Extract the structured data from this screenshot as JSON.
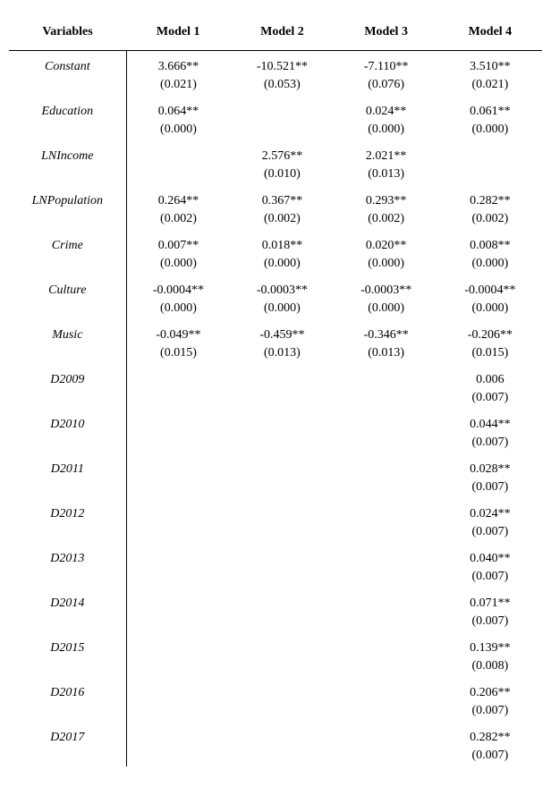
{
  "table": {
    "columns": [
      "Variables",
      "Model 1",
      "Model 2",
      "Model 3",
      "Model 4"
    ],
    "rows": [
      {
        "var": "Constant",
        "m1_c": "3.666**",
        "m1_s": "(0.021)",
        "m2_c": "-10.521**",
        "m2_s": "(0.053)",
        "m3_c": "-7.110**",
        "m3_s": "(0.076)",
        "m4_c": "3.510**",
        "m4_s": "(0.021)"
      },
      {
        "var": "Education",
        "m1_c": "0.064**",
        "m1_s": "(0.000)",
        "m2_c": "",
        "m2_s": "",
        "m3_c": "0.024**",
        "m3_s": "(0.000)",
        "m4_c": "0.061**",
        "m4_s": "(0.000)"
      },
      {
        "var": "LNIncome",
        "m1_c": "",
        "m1_s": "",
        "m2_c": "2.576**",
        "m2_s": "(0.010)",
        "m3_c": "2.021**",
        "m3_s": "(0.013)",
        "m4_c": "",
        "m4_s": ""
      },
      {
        "var": "LNPopulation",
        "m1_c": "0.264**",
        "m1_s": "(0.002)",
        "m2_c": "0.367**",
        "m2_s": "(0.002)",
        "m3_c": "0.293**",
        "m3_s": "(0.002)",
        "m4_c": "0.282**",
        "m4_s": "(0.002)"
      },
      {
        "var": "Crime",
        "m1_c": "0.007**",
        "m1_s": "(0.000)",
        "m2_c": "0.018**",
        "m2_s": "(0.000)",
        "m3_c": "0.020**",
        "m3_s": "(0.000)",
        "m4_c": "0.008**",
        "m4_s": "(0.000)"
      },
      {
        "var": "Culture",
        "m1_c": "-0.0004**",
        "m1_s": "(0.000)",
        "m2_c": "-0.0003**",
        "m2_s": "(0.000)",
        "m3_c": "-0.0003**",
        "m3_s": "(0.000)",
        "m4_c": "-0.0004**",
        "m4_s": "(0.000)"
      },
      {
        "var": "Music",
        "m1_c": "-0.049**",
        "m1_s": "(0.015)",
        "m2_c": "-0.459**",
        "m2_s": "(0.013)",
        "m3_c": "-0.346**",
        "m3_s": "(0.013)",
        "m4_c": "-0.206**",
        "m4_s": "(0.015)"
      },
      {
        "var": "D2009",
        "m1_c": "",
        "m1_s": "",
        "m2_c": "",
        "m2_s": "",
        "m3_c": "",
        "m3_s": "",
        "m4_c": "0.006",
        "m4_s": "(0.007)"
      },
      {
        "var": "D2010",
        "m1_c": "",
        "m1_s": "",
        "m2_c": "",
        "m2_s": "",
        "m3_c": "",
        "m3_s": "",
        "m4_c": "0.044**",
        "m4_s": "(0.007)"
      },
      {
        "var": "D2011",
        "m1_c": "",
        "m1_s": "",
        "m2_c": "",
        "m2_s": "",
        "m3_c": "",
        "m3_s": "",
        "m4_c": "0.028**",
        "m4_s": "(0.007)"
      },
      {
        "var": "D2012",
        "m1_c": "",
        "m1_s": "",
        "m2_c": "",
        "m2_s": "",
        "m3_c": "",
        "m3_s": "",
        "m4_c": "0.024**",
        "m4_s": "(0.007)"
      },
      {
        "var": "D2013",
        "m1_c": "",
        "m1_s": "",
        "m2_c": "",
        "m2_s": "",
        "m3_c": "",
        "m3_s": "",
        "m4_c": "0.040**",
        "m4_s": "(0.007)"
      },
      {
        "var": "D2014",
        "m1_c": "",
        "m1_s": "",
        "m2_c": "",
        "m2_s": "",
        "m3_c": "",
        "m3_s": "",
        "m4_c": "0.071**",
        "m4_s": "(0.007)"
      },
      {
        "var": "D2015",
        "m1_c": "",
        "m1_s": "",
        "m2_c": "",
        "m2_s": "",
        "m3_c": "",
        "m3_s": "",
        "m4_c": "0.139**",
        "m4_s": "(0.008)"
      },
      {
        "var": "D2016",
        "m1_c": "",
        "m1_s": "",
        "m2_c": "",
        "m2_s": "",
        "m3_c": "",
        "m3_s": "",
        "m4_c": "0.206**",
        "m4_s": "(0.007)"
      },
      {
        "var": "D2017",
        "m1_c": "",
        "m1_s": "",
        "m2_c": "",
        "m2_s": "",
        "m3_c": "",
        "m3_s": "",
        "m4_c": "0.282**",
        "m4_s": "(0.007)"
      }
    ],
    "styling": {
      "font_family": "Times New Roman",
      "body_fontsize_pt": 11,
      "header_bold": true,
      "varname_italic": true,
      "text_color": "#000000",
      "background_color": "#ffffff",
      "header_border_color": "#000000",
      "column_divider_after_col": 1,
      "col_widths_pct": [
        22,
        19.5,
        19.5,
        19.5,
        19.5
      ]
    }
  }
}
